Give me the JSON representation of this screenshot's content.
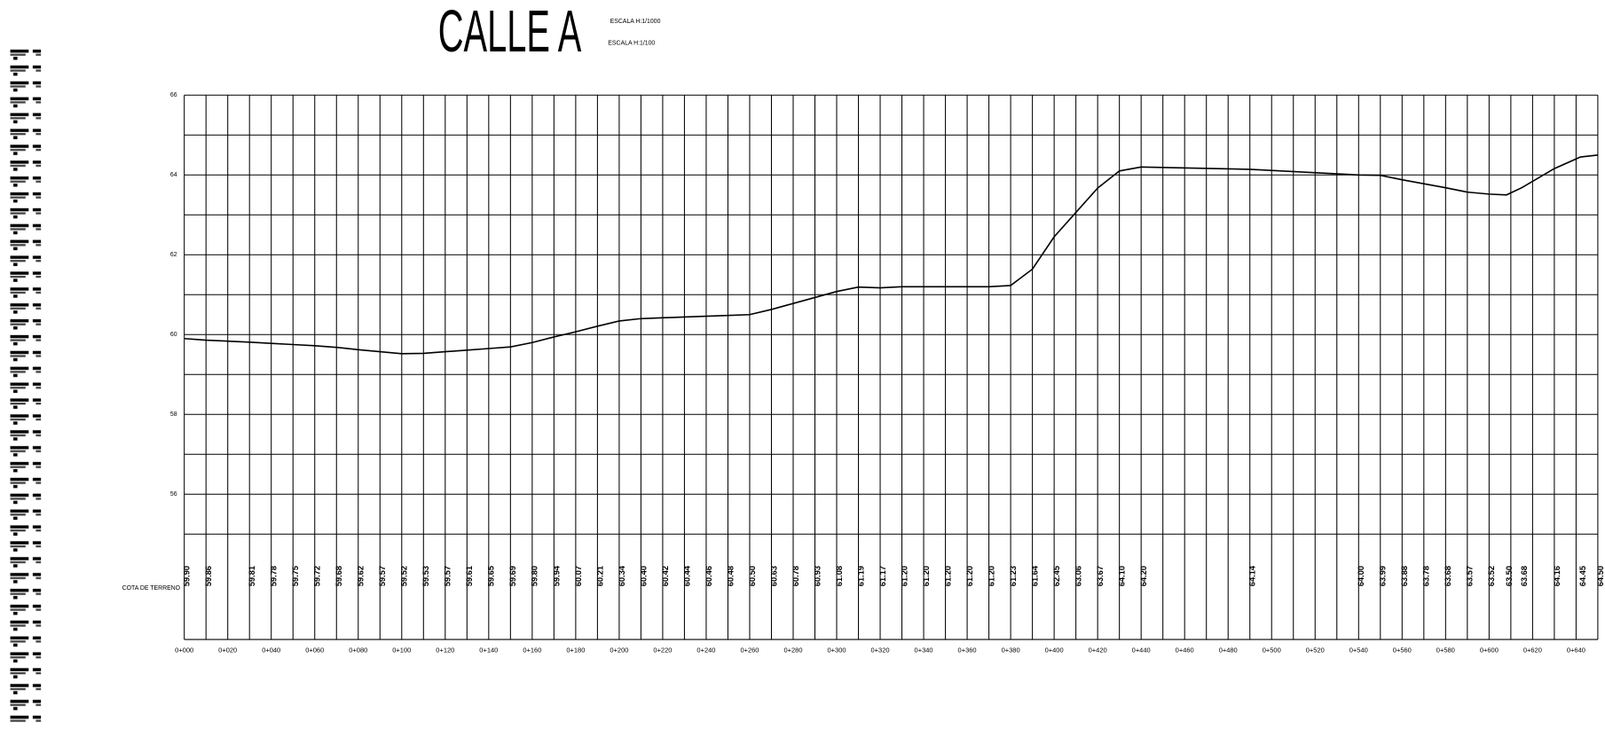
{
  "chart_data": {
    "type": "line",
    "title": "CALLE A",
    "subtitle": [
      "ESCALA H:1/1000",
      "ESCALA H:1/100"
    ],
    "row_label": "COTA DE TERRENO",
    "xlim": [
      0,
      650
    ],
    "ylim": [
      55,
      66
    ],
    "yticks": [
      56,
      58,
      60,
      62,
      64,
      66
    ],
    "yminorticks": [
      55,
      57,
      59,
      61,
      63,
      65
    ],
    "xticks": [
      {
        "value": 0,
        "label": "0+000"
      },
      {
        "value": 20,
        "label": "0+020"
      },
      {
        "value": 40,
        "label": "0+040"
      },
      {
        "value": 60,
        "label": "0+060"
      },
      {
        "value": 80,
        "label": "0+080"
      },
      {
        "value": 100,
        "label": "0+100"
      },
      {
        "value": 120,
        "label": "0+120"
      },
      {
        "value": 140,
        "label": "0+140"
      },
      {
        "value": 160,
        "label": "0+160"
      },
      {
        "value": 180,
        "label": "0+180"
      },
      {
        "value": 200,
        "label": "0+200"
      },
      {
        "value": 220,
        "label": "0+220"
      },
      {
        "value": 240,
        "label": "0+240"
      },
      {
        "value": 260,
        "label": "0+260"
      },
      {
        "value": 280,
        "label": "0+280"
      },
      {
        "value": 300,
        "label": "0+300"
      },
      {
        "value": 320,
        "label": "0+320"
      },
      {
        "value": 340,
        "label": "0+340"
      },
      {
        "value": 360,
        "label": "0+360"
      },
      {
        "value": 380,
        "label": "0+380"
      },
      {
        "value": 400,
        "label": "0+400"
      },
      {
        "value": 420,
        "label": "0+420"
      },
      {
        "value": 440,
        "label": "0+440"
      },
      {
        "value": 460,
        "label": "0+460"
      },
      {
        "value": 480,
        "label": "0+480"
      },
      {
        "value": 500,
        "label": "0+500"
      },
      {
        "value": 520,
        "label": "0+520"
      },
      {
        "value": 540,
        "label": "0+540"
      },
      {
        "value": 560,
        "label": "0+560"
      },
      {
        "value": 580,
        "label": "0+580"
      },
      {
        "value": 600,
        "label": "0+600"
      },
      {
        "value": 620,
        "label": "0+620"
      },
      {
        "value": 640,
        "label": "0+640"
      }
    ],
    "xminorticks": [
      10,
      30,
      50,
      70,
      90,
      110,
      130,
      150,
      170,
      190,
      210,
      230,
      250,
      270,
      290,
      310,
      330,
      350,
      370,
      390,
      410,
      430,
      450,
      470,
      490,
      510,
      530,
      550,
      570,
      590,
      610,
      630,
      650
    ],
    "grid": true,
    "color": "#000000",
    "series": [
      {
        "name": "COTA DE TERRENO",
        "color": "#000000",
        "x": [
          0,
          10,
          30,
          40,
          50,
          60,
          70,
          80,
          90,
          100,
          110,
          120,
          130,
          140,
          150,
          160,
          170,
          180,
          190,
          200,
          210,
          220,
          230,
          240,
          250,
          260,
          270,
          280,
          290,
          300,
          310,
          320,
          330,
          340,
          350,
          360,
          370,
          380,
          390,
          400,
          410,
          420,
          430,
          440,
          490,
          540,
          550,
          560,
          570,
          580,
          590,
          600,
          608,
          615,
          630,
          642,
          650
        ],
        "values": [
          59.9,
          59.86,
          59.81,
          59.78,
          59.75,
          59.72,
          59.68,
          59.62,
          59.57,
          59.52,
          59.53,
          59.57,
          59.61,
          59.65,
          59.69,
          59.8,
          59.94,
          60.07,
          60.21,
          60.34,
          60.4,
          60.42,
          60.44,
          60.46,
          60.48,
          60.5,
          60.63,
          60.78,
          60.93,
          61.08,
          61.19,
          61.17,
          61.2,
          61.2,
          61.2,
          61.2,
          61.2,
          61.23,
          61.64,
          62.45,
          63.06,
          63.67,
          64.1,
          64.2,
          64.14,
          64.0,
          63.99,
          63.88,
          63.78,
          63.68,
          63.57,
          63.52,
          63.5,
          63.68,
          64.16,
          64.45,
          64.5
        ],
        "value_labels": [
          "59.90",
          "59.86",
          "59.81",
          "59.78",
          "59.75",
          "59.72",
          "59.68",
          "59.62",
          "59.57",
          "59.52",
          "59.53",
          "59.57",
          "59.61",
          "59.65",
          "59.69",
          "59.80",
          "59.94",
          "60.07",
          "60.21",
          "60.34",
          "60.40",
          "60.42",
          "60.44",
          "60.46",
          "60.48",
          "60.50",
          "60.63",
          "60.78",
          "60.93",
          "61.08",
          "61.19",
          "61.17",
          "61.20",
          "61.20",
          "61.20",
          "61.20",
          "61.20",
          "61.23",
          "61.64",
          "62.45",
          "63.06",
          "63.67",
          "64.10",
          "64.20",
          "64.14",
          "64.00",
          "63.99",
          "63.88",
          "63.78",
          "63.68",
          "63.57",
          "63.52",
          "63.50",
          "63.68",
          "64.16",
          "64.45",
          "64.50"
        ]
      }
    ]
  }
}
